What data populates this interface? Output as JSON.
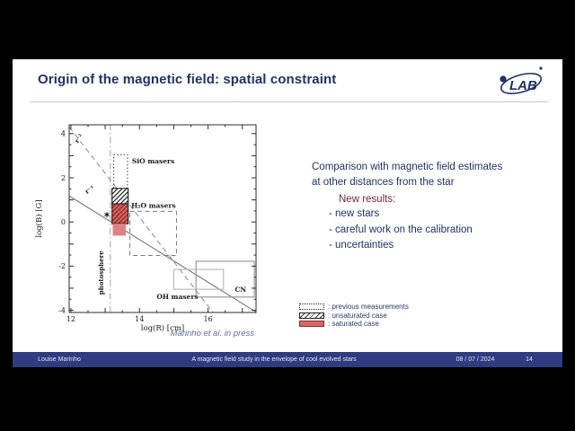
{
  "slide": {
    "title": "Origin of the magnetic field: spatial constraint",
    "logo_text": "LAB",
    "comparison_line1": "Comparison with magnetic field estimates",
    "comparison_line2": "at other distances from the star",
    "new_results_heading": "New results:",
    "bullets": [
      "new stars",
      "careful work on the calibration",
      "uncertainties"
    ],
    "legend": [
      {
        "swatch": "dotted-box",
        "label": ": previous measurements"
      },
      {
        "swatch": "hatched-box",
        "label": ": unsaturated case"
      },
      {
        "swatch": "red-box",
        "label": ": saturated case"
      }
    ],
    "attribution": "Marinho et al. in press",
    "accent_navy": "#203265",
    "accent_maroon": "#7c2342",
    "saturated_red": "#d96868"
  },
  "footer": {
    "author": "Louise Marinho",
    "deck_title": "A magnetic field study in the envelope of cool evolved stars",
    "date": "08 / 07 / 2024",
    "page": "14"
  },
  "chart_data": {
    "type": "scatter",
    "title": "",
    "xlabel": "log(R) [cm]",
    "ylabel": "log(B) [G]",
    "xlim": [
      11.95,
      17.4
    ],
    "ylim": [
      -4.1,
      4.4
    ],
    "xticks": [
      12,
      14,
      16
    ],
    "yticks": [
      4,
      2,
      0,
      -2,
      -4
    ],
    "minor_step": 0.5,
    "grid": false,
    "lines": [
      {
        "label": "r⁻²",
        "style": "dashed",
        "x": [
          11.95,
          16.15
        ],
        "y": [
          4.3,
          -4.1
        ],
        "label_xy": [
          12.28,
          3.72
        ],
        "label_rotate": -52
      },
      {
        "label": "r⁻¹",
        "style": "solid",
        "x": [
          11.95,
          17.4
        ],
        "y": [
          1.18,
          -4.08
        ],
        "label_xy": [
          12.58,
          1.38
        ],
        "label_rotate": -33
      },
      {
        "label": "photosphere",
        "style": "dashdot-vertical",
        "x": [
          13.15,
          13.15
        ],
        "y": [
          -4.1,
          4.4
        ],
        "label_xy": [
          12.94,
          -2.3
        ],
        "label_rotate": -90
      }
    ],
    "regions": [
      {
        "label": "SiO masers",
        "style": "dotted",
        "x": [
          13.25,
          13.65
        ],
        "y": [
          0.05,
          3.05
        ],
        "label_xy": [
          13.78,
          2.66
        ]
      },
      {
        "label": "H₂O masers",
        "style": "dashed",
        "x": [
          13.72,
          15.08
        ],
        "y": [
          -1.52,
          0.48
        ],
        "label_xy": [
          13.76,
          0.64
        ]
      },
      {
        "label": "OH masers",
        "style": "box-light",
        "x": [
          15.0,
          16.45
        ],
        "y": [
          -3.05,
          -2.15
        ],
        "label_xy": [
          14.5,
          -3.48
        ]
      },
      {
        "label": "CN",
        "style": "box-gray",
        "x": [
          15.65,
          17.35
        ],
        "y": [
          -3.4,
          -1.78
        ],
        "label_xy": [
          16.78,
          -3.16
        ]
      },
      {
        "label": "",
        "style": "hatched",
        "x": [
          13.2,
          13.67
        ],
        "y": [
          0.82,
          1.52
        ]
      },
      {
        "label": "",
        "style": "red-hatched",
        "x": [
          13.2,
          13.67
        ],
        "y": [
          -0.08,
          0.82
        ]
      },
      {
        "label": "",
        "style": "red-light",
        "x": [
          13.22,
          13.6
        ],
        "y": [
          -0.62,
          -0.08
        ]
      }
    ],
    "markers": [
      {
        "symbol": "asterisk",
        "x": 13.05,
        "y": 0.33
      }
    ]
  }
}
